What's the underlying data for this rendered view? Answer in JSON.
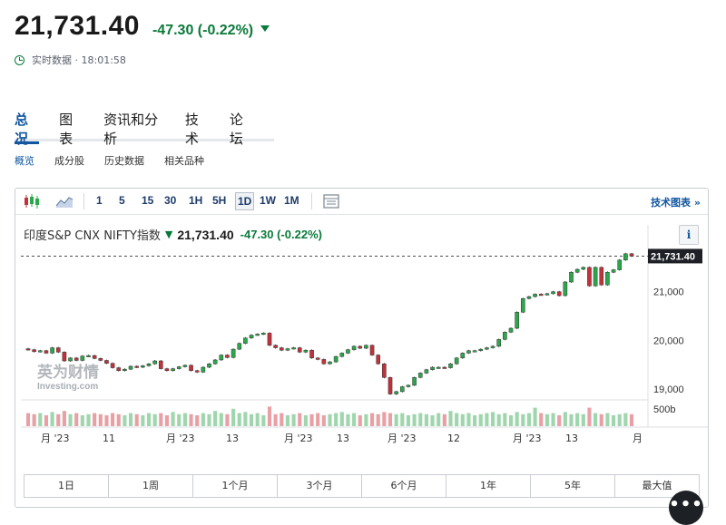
{
  "quote": {
    "price": "21,731.40",
    "change": "-47.30  (-0.22%)",
    "realtime_label": "实时数据 · 18:01:58"
  },
  "tabs": [
    "总况",
    "图表",
    "资讯和分析",
    "技术",
    "论坛"
  ],
  "subtabs": [
    "概览",
    "成分股",
    "历史数据",
    "相关品种"
  ],
  "toolbar": {
    "icons": [
      "candlestick-icon",
      "area-chart-icon",
      "table-icon"
    ],
    "intervals": [
      "1",
      "5",
      "15",
      "30",
      "1H",
      "5H",
      "1D",
      "1W",
      "1M"
    ],
    "active_interval": "1D",
    "technical_link": "技术图表 »"
  },
  "chart_header": {
    "name": "印度S&P CNX NIFTY指数",
    "arrow": "▼",
    "price": "21,731.40",
    "change": "-47.30 (-0.22%)",
    "info_button": "i"
  },
  "watermark": {
    "line1": "英为财情",
    "line2": "Investing.com"
  },
  "ranges": [
    "1日",
    "1周",
    "1个月",
    "3个月",
    "6个月",
    "1年",
    "5年",
    "最大值"
  ],
  "more_button": "•••",
  "colors": {
    "up": "#2ba84a",
    "down": "#c2323a",
    "text_green": "#0a7a3a",
    "link_blue": "#1256a0"
  },
  "chart_data": {
    "type": "candlestick",
    "price_axis": {
      "ticks": [
        19000,
        20000,
        21000
      ],
      "tick_labels": [
        "19,000",
        "20,000",
        "21,000"
      ],
      "current_label": "21,731.40",
      "range": [
        18780,
        22000
      ]
    },
    "volume_axis": {
      "label": "500b"
    },
    "x_labels": [
      "月 '23",
      "11",
      "月 '23",
      "13",
      "月 '23",
      "13",
      "月 '23",
      "12",
      "月 '23",
      "13",
      "月"
    ],
    "last_value": 21731.4,
    "closes": [
      19810,
      19770,
      19790,
      19740,
      19850,
      19760,
      19580,
      19640,
      19590,
      19680,
      19690,
      19630,
      19590,
      19530,
      19440,
      19380,
      19410,
      19470,
      19450,
      19480,
      19520,
      19580,
      19420,
      19380,
      19420,
      19460,
      19490,
      19380,
      19350,
      19450,
      19520,
      19600,
      19700,
      19650,
      19820,
      19940,
      20050,
      20110,
      20130,
      20150,
      19900,
      19850,
      19800,
      19830,
      19850,
      19760,
      19800,
      19640,
      19610,
      19520,
      19560,
      19670,
      19740,
      19810,
      19880,
      19840,
      19900,
      19700,
      19520,
      19240,
      18900,
      18950,
      19050,
      19080,
      19240,
      19330,
      19400,
      19450,
      19450,
      19440,
      19520,
      19640,
      19740,
      19790,
      19790,
      19820,
      19850,
      19880,
      20020,
      20170,
      20250,
      20580,
      20860,
      20900,
      20950,
      20940,
      20960,
      21000,
      20920,
      21200,
      21400,
      21460,
      21500,
      21120,
      21500,
      21140,
      21400,
      21450,
      21650,
      21780,
      21731
    ],
    "volumes": [
      0.6,
      0.55,
      0.6,
      0.5,
      0.65,
      0.55,
      0.7,
      0.55,
      0.6,
      0.5,
      0.55,
      0.6,
      0.55,
      0.5,
      0.6,
      0.55,
      0.5,
      0.6,
      0.55,
      0.5,
      0.6,
      0.55,
      0.6,
      0.5,
      0.65,
      0.55,
      0.6,
      0.55,
      0.5,
      0.6,
      0.55,
      0.7,
      0.6,
      0.55,
      0.8,
      0.6,
      0.65,
      0.55,
      0.6,
      0.5,
      0.9,
      0.55,
      0.6,
      0.5,
      0.55,
      0.6,
      0.5,
      0.55,
      0.6,
      0.5,
      0.55,
      0.6,
      0.65,
      0.55,
      0.6,
      0.5,
      0.55,
      0.6,
      0.55,
      0.65,
      0.6,
      0.55,
      0.6,
      0.5,
      0.55,
      0.6,
      0.55,
      0.5,
      0.6,
      0.55,
      0.7,
      0.6,
      0.55,
      0.6,
      0.5,
      0.55,
      0.6,
      0.65,
      0.55,
      0.6,
      0.5,
      0.65,
      0.55,
      0.6,
      0.85,
      0.6,
      0.55,
      0.6,
      0.5,
      0.65,
      0.55,
      0.6,
      0.55,
      0.85,
      0.6,
      0.55,
      0.6,
      0.5,
      0.55,
      0.6,
      0.55
    ]
  }
}
